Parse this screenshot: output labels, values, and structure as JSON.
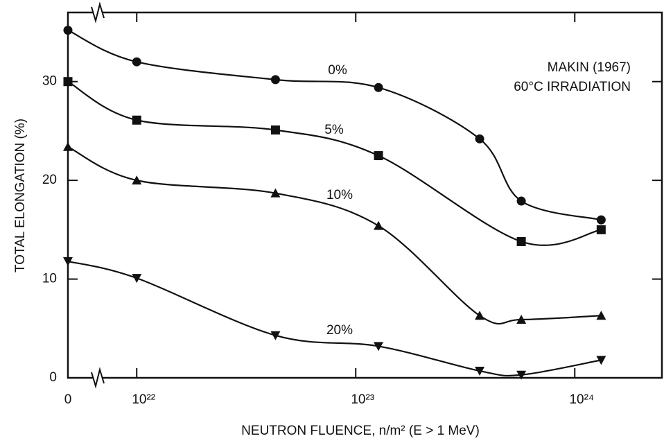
{
  "chart_data": {
    "type": "line",
    "x_label": "NEUTRON FLUENCE, n/m² (E > 1 MeV)",
    "y_label": "TOTAL ELONGATION (%)",
    "annotations": [
      "MAKIN (1967)",
      "60°C IRRADIATION"
    ],
    "xscale": "log",
    "xlim": [
      0,
      2.5e+24
    ],
    "xticks": [
      {
        "value": 0,
        "label": "0"
      },
      {
        "value": 1e+22,
        "label": "10²²"
      },
      {
        "value": 1e+23,
        "label": "10²³"
      },
      {
        "value": 1e+24,
        "label": "10²⁴"
      }
    ],
    "ylim": [
      0,
      37
    ],
    "yticks": [
      0,
      10,
      20,
      30
    ],
    "x": [
      0,
      1e+22,
      4.3e+22,
      1.27e+23,
      3.68e+23,
      5.7e+23,
      1.32e+24
    ],
    "series": [
      {
        "name": "0%",
        "color": "#111111",
        "marker": "circle",
        "values": [
          35.2,
          32.0,
          30.2,
          29.4,
          24.2,
          17.9,
          16.0
        ]
      },
      {
        "name": "5%",
        "color": "#111111",
        "marker": "square",
        "values": [
          30.0,
          26.1,
          25.1,
          22.5,
          null,
          13.8,
          15.0
        ]
      },
      {
        "name": "10%",
        "color": "#111111",
        "marker": "triangle",
        "values": [
          23.4,
          20.0,
          18.7,
          15.4,
          6.3,
          5.9,
          6.3
        ]
      },
      {
        "name": "20%",
        "color": "#111111",
        "marker": "triangle-down",
        "values": [
          11.8,
          10.1,
          4.3,
          3.2,
          0.7,
          0.3,
          1.8
        ]
      }
    ]
  }
}
